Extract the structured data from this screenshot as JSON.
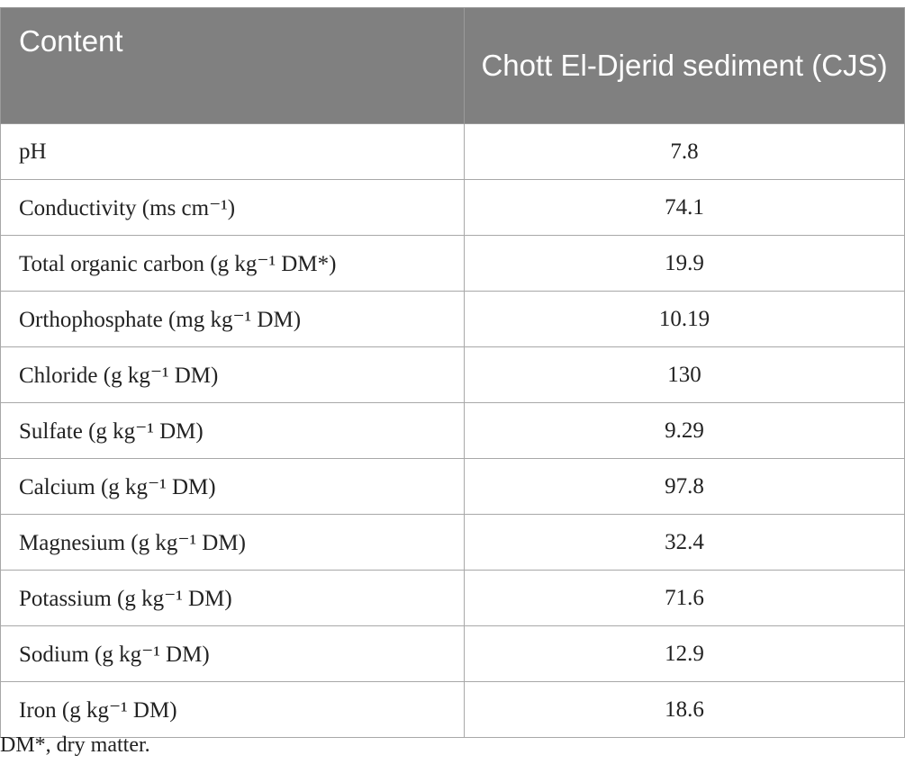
{
  "table": {
    "headers": [
      "Content",
      "Chott El-Djerid sediment (CJS)"
    ],
    "rows": [
      [
        "pH",
        "7.8"
      ],
      [
        "Conductivity (ms cm⁻¹)",
        "74.1"
      ],
      [
        "Total organic carbon (g kg⁻¹ DM*)",
        "19.9"
      ],
      [
        "Orthophosphate (mg kg⁻¹ DM)",
        "10.19"
      ],
      [
        "Chloride (g kg⁻¹ DM)",
        "130"
      ],
      [
        "Sulfate (g kg⁻¹ DM)",
        "9.29"
      ],
      [
        "Calcium (g kg⁻¹ DM)",
        "97.8"
      ],
      [
        "Magnesium (g kg⁻¹ DM)",
        "32.4"
      ],
      [
        "Potassium (g kg⁻¹ DM)",
        "71.6"
      ],
      [
        "Sodium (g kg⁻¹ DM)",
        "12.9"
      ],
      [
        "Iron (g kg⁻¹ DM)",
        "18.6"
      ]
    ]
  },
  "footnote": "DM*, dry matter."
}
